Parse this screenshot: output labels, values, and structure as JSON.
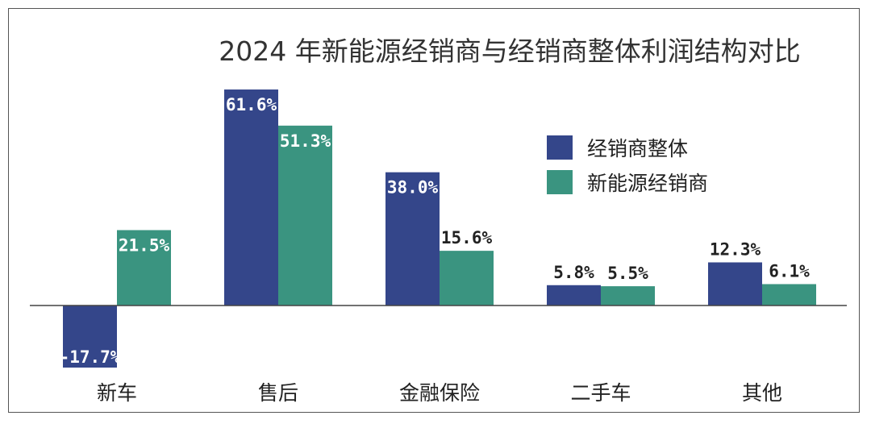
{
  "chart_data": {
    "type": "bar",
    "title": "2024 年新能源经销商与经销商整体利润结构对比",
    "categories": [
      "新车",
      "售后",
      "金融保险",
      "二手车",
      "其他"
    ],
    "series": [
      {
        "name": "经销商整体",
        "color": "#34468a",
        "values": [
          -17.7,
          61.6,
          38.0,
          5.8,
          12.3
        ],
        "labels": [
          "-17.7%",
          "61.6%",
          "38.0%",
          "5.8%",
          "12.3%"
        ]
      },
      {
        "name": "新能源经销商",
        "color": "#3a9480",
        "values": [
          21.5,
          51.3,
          15.6,
          5.5,
          6.1
        ],
        "labels": [
          "21.5%",
          "51.3%",
          "15.6%",
          "5.5%",
          "6.1%"
        ]
      }
    ],
    "legend_position": "top-right",
    "grid": false,
    "baseline": 0
  }
}
